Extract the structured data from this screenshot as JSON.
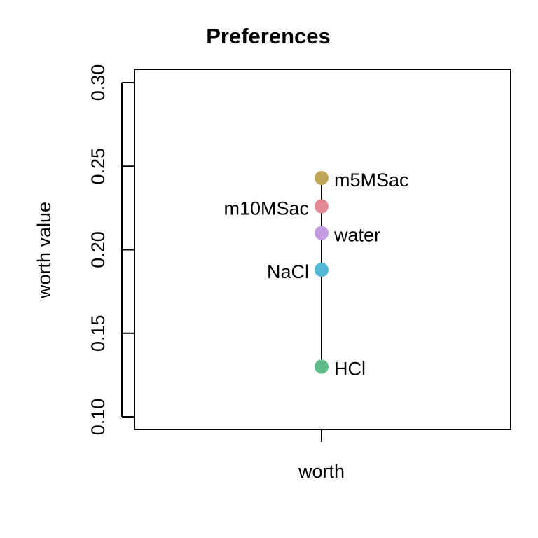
{
  "chart_data": {
    "type": "scatter",
    "title": "Preferences",
    "xlabel": "",
    "ylabel": "worth value",
    "x_categories": [
      "worth"
    ],
    "yticks": [
      "0.10",
      "0.15",
      "0.20",
      "0.25",
      "0.30"
    ],
    "ylim": [
      0.1,
      0.3
    ],
    "grid": false,
    "legend": "none",
    "points": [
      {
        "label": "m5MSac",
        "x": "worth",
        "y": 0.243,
        "color": "#BFA658",
        "label_side": "right"
      },
      {
        "label": "m10MSac",
        "x": "worth",
        "y": 0.226,
        "color": "#E48A96",
        "label_side": "left"
      },
      {
        "label": "water",
        "x": "worth",
        "y": 0.21,
        "color": "#C29BE0",
        "label_side": "right"
      },
      {
        "label": "NaCl",
        "x": "worth",
        "y": 0.188,
        "color": "#55B6D6",
        "label_side": "left"
      },
      {
        "label": "HCl",
        "x": "worth",
        "y": 0.13,
        "color": "#5FBA8A",
        "label_side": "right"
      }
    ]
  }
}
